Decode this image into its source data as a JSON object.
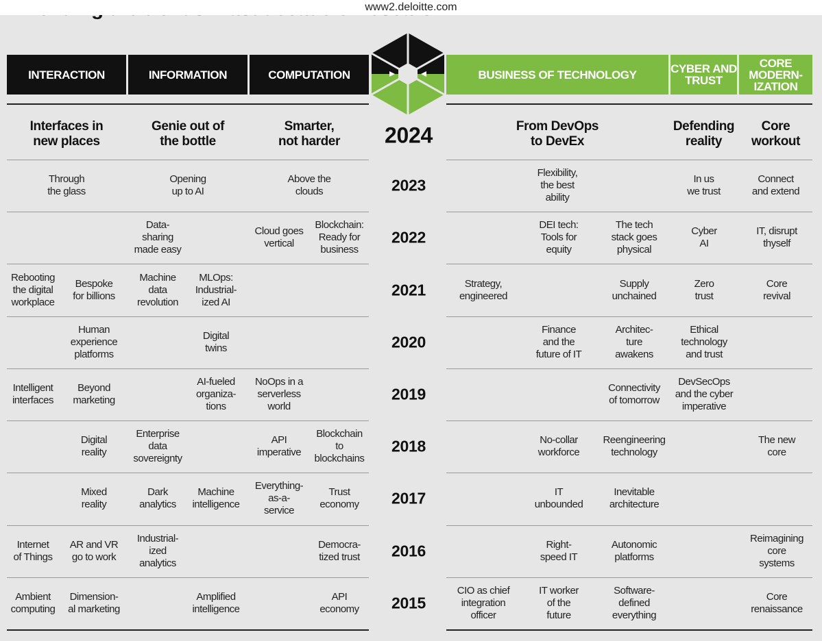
{
  "browser": {
    "url": "www2.deloitte.com"
  },
  "title": "Trending the trends: Last decade of research",
  "pillars": [
    "INTERACTION",
    "INFORMATION",
    "COMPUTATION",
    "BUSINESS OF TECHNOLOGY",
    "CYBER AND\nTRUST",
    "CORE\nMODERN-\nIZATION"
  ],
  "headline": {
    "year": "2024",
    "topics": [
      "Interfaces in\nnew places",
      "Genie out of\nthe bottle",
      "Smarter,\nnot harder",
      "From DevOps\nto DevEx",
      "Defending\nreality",
      "Core\nworkout"
    ]
  },
  "rows": [
    {
      "year": "2023",
      "topics": [
        "Through\nthe glass",
        "Opening\nup to AI",
        "Above the\nclouds",
        "Flexibility,\nthe best\nability",
        "In us\nwe trust",
        "Connect\nand extend"
      ]
    },
    {
      "year": "2022",
      "topics": [
        null,
        null,
        "Data-\nsharing\nmade easy",
        null,
        "Cloud goes\nvertical",
        "Blockchain:\nReady for\nbusiness",
        null,
        "DEI tech:\nTools for\nequity",
        "The tech\nstack goes\nphysical",
        "Cyber\nAI",
        "IT, disrupt\nthyself"
      ]
    },
    {
      "year": "2021",
      "topics": [
        "Rebooting\nthe digital\nworkplace",
        "Bespoke\nfor billions",
        "Machine\ndata\nrevolution",
        "MLOps:\nIndustrial-\nized AI",
        null,
        null,
        "Strategy,\nengineered",
        null,
        "Supply\nunchained",
        "Zero\ntrust",
        "Core\nrevival"
      ]
    },
    {
      "year": "2020",
      "topics": [
        null,
        "Human\nexperience\nplatforms",
        null,
        "Digital\ntwins",
        null,
        null,
        null,
        "Finance\nand the\nfuture of IT",
        "Architec-\nture\nawakens",
        "Ethical\ntechnology\nand trust",
        null
      ]
    },
    {
      "year": "2019",
      "topics": [
        "Intelligent\ninterfaces",
        "Beyond\nmarketing",
        null,
        "AI-fueled\norganiza-\ntions",
        "NoOps in a\nserverless\nworld",
        null,
        null,
        null,
        "Connectivity\nof tomorrow",
        "DevSecOps\nand the cyber\nimperative",
        null
      ]
    },
    {
      "year": "2018",
      "topics": [
        null,
        "Digital\nreality",
        "Enterprise\ndata\nsovereignty",
        null,
        "API\nimperative",
        "Blockchain\nto\nblockchains",
        null,
        "No-collar\nworkforce",
        "Reengineering\ntechnology",
        null,
        "The new\ncore"
      ]
    },
    {
      "year": "2017",
      "topics": [
        null,
        "Mixed\nreality",
        "Dark\nanalytics",
        "Machine\nintelligence",
        "Everything-\nas-a-\nservice",
        "Trust\neconomy",
        null,
        "IT\nunbounded",
        "Inevitable\narchitecture",
        null,
        null
      ]
    },
    {
      "year": "2016",
      "topics": [
        "Internet\nof Things",
        "AR and VR\ngo to work",
        "Industrial-\nized\nanalytics",
        null,
        null,
        "Democra-\ntized trust",
        null,
        "Right-\nspeed IT",
        "Autonomic\nplatforms",
        null,
        "Reimagining\ncore\nsystems"
      ]
    },
    {
      "year": "2015",
      "topics": [
        "Ambient\ncomputing",
        "Dimension-\nal marketing",
        null,
        "Amplified\nintelligence",
        null,
        "API\neconomy",
        "CIO as chief\nintegration\nofficer",
        "IT worker\nof the\nfuture",
        "Software-\ndefined\neverything",
        null,
        "Core\nrenaissance"
      ]
    }
  ]
}
